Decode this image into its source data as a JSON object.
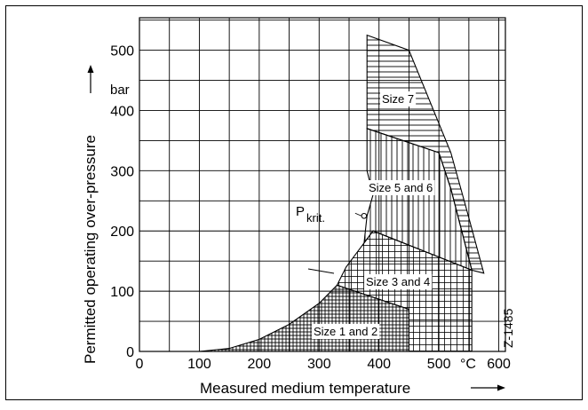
{
  "chart_data": {
    "type": "area",
    "ylabel": "Permitted operating over-pressure",
    "yunit": "bar",
    "xlabel": "Measured medium temperature",
    "xunit": "°C",
    "xlim": [
      0,
      610
    ],
    "ylim": [
      0,
      550
    ],
    "x_ticks": [
      0,
      100,
      200,
      300,
      400,
      500,
      600
    ],
    "y_ticks": [
      0,
      100,
      200,
      300,
      400,
      500
    ],
    "grid": true,
    "figure_code": "Z-1485",
    "critical_point": {
      "label": "P",
      "subscript": "krit.",
      "x": 375,
      "y": 225
    },
    "series": [
      {
        "name": "Size 1 and 2",
        "hatch": "crosshatch",
        "points": [
          [
            100,
            0
          ],
          [
            450,
            0
          ],
          [
            450,
            70
          ],
          [
            330,
            110
          ],
          [
            300,
            80
          ],
          [
            250,
            45
          ],
          [
            200,
            20
          ],
          [
            150,
            5
          ],
          [
            100,
            0
          ]
        ]
      },
      {
        "name": "Size 3 and 4",
        "hatch": "grid",
        "points": [
          [
            330,
            110
          ],
          [
            345,
            140
          ],
          [
            360,
            160
          ],
          [
            375,
            180
          ],
          [
            390,
            200
          ],
          [
            555,
            135
          ],
          [
            555,
            0
          ],
          [
            450,
            0
          ],
          [
            450,
            70
          ],
          [
            330,
            110
          ]
        ]
      },
      {
        "name": "Size 5 and 6",
        "hatch": "vertical",
        "points": [
          [
            380,
            225
          ],
          [
            390,
            260
          ],
          [
            380,
            300
          ],
          [
            380,
            370
          ],
          [
            500,
            330
          ],
          [
            520,
            270
          ],
          [
            555,
            135
          ],
          [
            390,
            200
          ],
          [
            375,
            180
          ],
          [
            380,
            225
          ]
        ]
      },
      {
        "name": "Size 7",
        "hatch": "horizontal",
        "points": [
          [
            380,
            525
          ],
          [
            450,
            500
          ],
          [
            520,
            330
          ],
          [
            545,
            240
          ],
          [
            575,
            130
          ],
          [
            555,
            135
          ],
          [
            520,
            270
          ],
          [
            500,
            330
          ],
          [
            380,
            370
          ],
          [
            380,
            525
          ]
        ]
      }
    ]
  }
}
